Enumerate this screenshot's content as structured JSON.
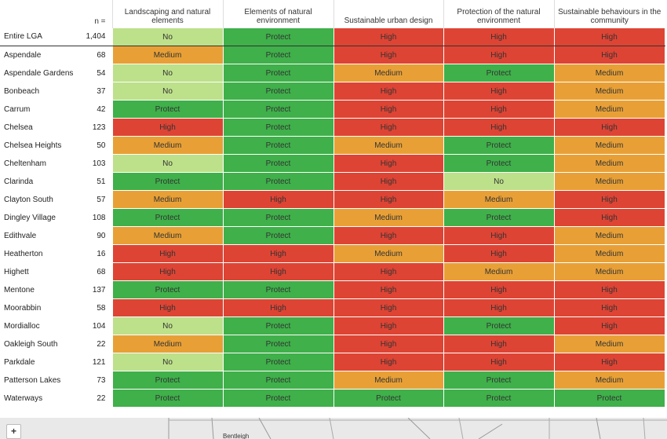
{
  "colors": {
    "No": "#bde08a",
    "Protect": "#3fb04a",
    "Medium": "#e8a036",
    "High": "#de4434"
  },
  "header": {
    "n_label": "n =",
    "columns": [
      "Landscaping and natural elements",
      "Elements of natural environment",
      "Sustainable urban design",
      "Protection of the natural environment",
      "Sustainable behaviours in the community"
    ]
  },
  "rows": [
    {
      "name": "Entire LGA",
      "n": "1,404",
      "values": [
        "No",
        "Protect",
        "High",
        "High",
        "High"
      ]
    },
    {
      "name": "Aspendale",
      "n": "68",
      "values": [
        "Medium",
        "Protect",
        "High",
        "High",
        "High"
      ]
    },
    {
      "name": "Aspendale Gardens",
      "n": "54",
      "values": [
        "No",
        "Protect",
        "Medium",
        "Protect",
        "Medium"
      ]
    },
    {
      "name": "Bonbeach",
      "n": "37",
      "values": [
        "No",
        "Protect",
        "High",
        "High",
        "Medium"
      ]
    },
    {
      "name": "Carrum",
      "n": "42",
      "values": [
        "Protect",
        "Protect",
        "High",
        "High",
        "Medium"
      ]
    },
    {
      "name": "Chelsea",
      "n": "123",
      "values": [
        "High",
        "Protect",
        "High",
        "High",
        "High"
      ]
    },
    {
      "name": "Chelsea Heights",
      "n": "50",
      "values": [
        "Medium",
        "Protect",
        "Medium",
        "Protect",
        "Medium"
      ]
    },
    {
      "name": "Cheltenham",
      "n": "103",
      "values": [
        "No",
        "Protect",
        "High",
        "Protect",
        "Medium"
      ]
    },
    {
      "name": "Clarinda",
      "n": "51",
      "values": [
        "Protect",
        "Protect",
        "High",
        "No",
        "Medium"
      ]
    },
    {
      "name": "Clayton South",
      "n": "57",
      "values": [
        "Medium",
        "High",
        "High",
        "Medium",
        "High"
      ]
    },
    {
      "name": "Dingley Village",
      "n": "108",
      "values": [
        "Protect",
        "Protect",
        "Medium",
        "Protect",
        "High"
      ]
    },
    {
      "name": "Edithvale",
      "n": "90",
      "values": [
        "Medium",
        "Protect",
        "High",
        "High",
        "Medium"
      ]
    },
    {
      "name": "Heatherton",
      "n": "16",
      "values": [
        "High",
        "High",
        "Medium",
        "High",
        "Medium"
      ]
    },
    {
      "name": "Highett",
      "n": "68",
      "values": [
        "High",
        "High",
        "High",
        "Medium",
        "Medium"
      ]
    },
    {
      "name": "Mentone",
      "n": "137",
      "values": [
        "Protect",
        "Protect",
        "High",
        "High",
        "High"
      ]
    },
    {
      "name": "Moorabbin",
      "n": "58",
      "values": [
        "High",
        "High",
        "High",
        "High",
        "High"
      ]
    },
    {
      "name": "Mordialloc",
      "n": "104",
      "values": [
        "No",
        "Protect",
        "High",
        "Protect",
        "High"
      ]
    },
    {
      "name": "Oakleigh South",
      "n": "22",
      "values": [
        "Medium",
        "Protect",
        "High",
        "High",
        "Medium"
      ]
    },
    {
      "name": "Parkdale",
      "n": "121",
      "values": [
        "No",
        "Protect",
        "High",
        "High",
        "High"
      ]
    },
    {
      "name": "Patterson Lakes",
      "n": "73",
      "values": [
        "Protect",
        "Protect",
        "Medium",
        "Protect",
        "Medium"
      ]
    },
    {
      "name": "Waterways",
      "n": "22",
      "values": [
        "Protect",
        "Protect",
        "Protect",
        "Protect",
        "Protect"
      ]
    }
  ],
  "map": {
    "zoom_button": "+",
    "labels": [
      "Bentleigh"
    ]
  }
}
